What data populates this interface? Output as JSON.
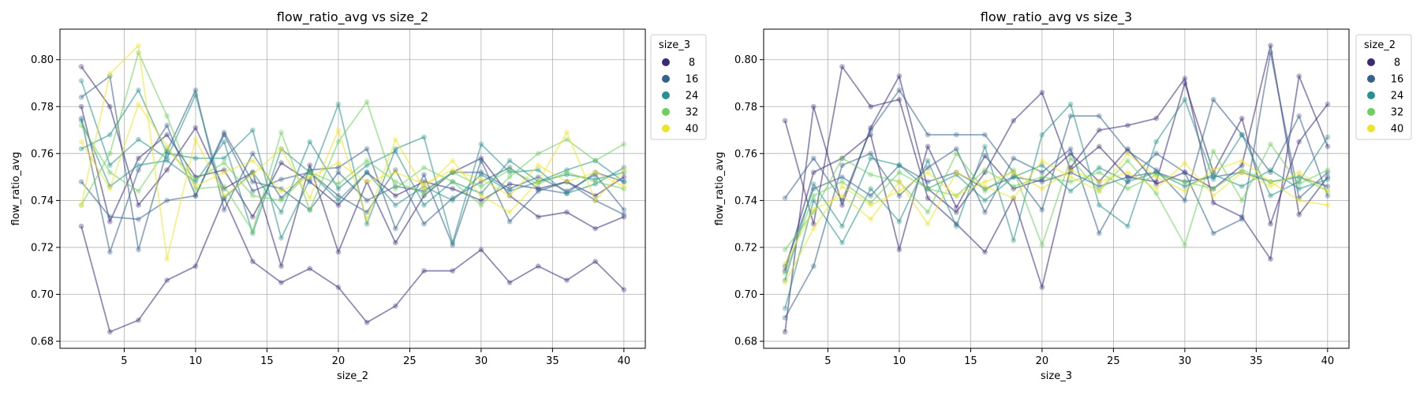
{
  "chart_data": [
    {
      "type": "line",
      "title": "flow_ratio_avg vs size_2",
      "xlabel": "size_2",
      "ylabel": "flow_ratio_avg",
      "xlim": [
        0.5,
        41.5
      ],
      "ylim": [
        0.677,
        0.813
      ],
      "xticks": [
        5,
        10,
        15,
        20,
        25,
        30,
        35,
        40
      ],
      "yticks": [
        0.68,
        0.7,
        0.72,
        0.74,
        0.76,
        0.78,
        0.8
      ],
      "grid": true,
      "legend": {
        "title": "size_3",
        "placement": "outside-top-right",
        "entries": [
          "8",
          "16",
          "24",
          "32",
          "40"
        ]
      },
      "x": [
        2,
        4,
        6,
        8,
        10,
        12,
        14,
        16,
        18,
        20,
        22,
        24,
        26,
        28,
        30,
        32,
        34,
        36,
        38,
        40
      ],
      "series": [
        {
          "group": "8",
          "color": "#3b2a78",
          "values": [
            0.729,
            0.684,
            0.689,
            0.706,
            0.712,
            0.741,
            0.714,
            0.705,
            0.711,
            0.703,
            0.688,
            0.695,
            0.71,
            0.71,
            0.719,
            0.705,
            0.712,
            0.706,
            0.714,
            0.702
          ]
        },
        {
          "group": "8",
          "color": "#3b2a78",
          "values": [
            0.797,
            0.78,
            0.738,
            0.753,
            0.771,
            0.745,
            0.752,
            0.712,
            0.755,
            0.718,
            0.748,
            0.722,
            0.742,
            0.752,
            0.758,
            0.742,
            0.733,
            0.735,
            0.728,
            0.733
          ]
        },
        {
          "group": "8",
          "color": "#3b2a78",
          "values": [
            0.78,
            0.731,
            0.758,
            0.768,
            0.75,
            0.753,
            0.733,
            0.756,
            0.748,
            0.738,
            0.752,
            0.742,
            0.748,
            0.745,
            0.74,
            0.747,
            0.745,
            0.748,
            0.742,
            0.75
          ]
        },
        {
          "group": "16",
          "color": "#34618d",
          "values": [
            0.784,
            0.793,
            0.719,
            0.761,
            0.787,
            0.736,
            0.76,
            0.741,
            0.753,
            0.754,
            0.762,
            0.728,
            0.751,
            0.721,
            0.757,
            0.731,
            0.744,
            0.748,
            0.74,
            0.734
          ]
        },
        {
          "group": "16",
          "color": "#34618d",
          "values": [
            0.775,
            0.718,
            0.753,
            0.772,
            0.742,
            0.768,
            0.744,
            0.749,
            0.752,
            0.742,
            0.735,
            0.753,
            0.73,
            0.741,
            0.748,
            0.754,
            0.745,
            0.743,
            0.752,
            0.748
          ]
        },
        {
          "group": "16",
          "color": "#34618d",
          "values": [
            0.748,
            0.733,
            0.732,
            0.74,
            0.742,
            0.769,
            0.748,
            0.745,
            0.736,
            0.752,
            0.74,
            0.746,
            0.744,
            0.752,
            0.752,
            0.745,
            0.75,
            0.744,
            0.751,
            0.736
          ]
        },
        {
          "group": "24",
          "color": "#26928d",
          "values": [
            0.762,
            0.768,
            0.787,
            0.76,
            0.758,
            0.758,
            0.77,
            0.724,
            0.749,
            0.781,
            0.73,
            0.762,
            0.767,
            0.722,
            0.764,
            0.752,
            0.753,
            0.743,
            0.747,
            0.754
          ]
        },
        {
          "group": "24",
          "color": "#26928d",
          "values": [
            0.774,
            0.746,
            0.755,
            0.757,
            0.748,
            0.765,
            0.726,
            0.762,
            0.752,
            0.74,
            0.752,
            0.738,
            0.746,
            0.74,
            0.751,
            0.744,
            0.748,
            0.751,
            0.749,
            0.752
          ]
        },
        {
          "group": "24",
          "color": "#26928d",
          "values": [
            0.791,
            0.755,
            0.766,
            0.758,
            0.785,
            0.741,
            0.752,
            0.735,
            0.765,
            0.745,
            0.755,
            0.761,
            0.738,
            0.748,
            0.743,
            0.757,
            0.748,
            0.753,
            0.757,
            0.748
          ]
        },
        {
          "group": "32",
          "color": "#6ecf5c",
          "values": [
            0.738,
            0.76,
            0.803,
            0.776,
            0.745,
            0.746,
            0.727,
            0.769,
            0.736,
            0.765,
            0.782,
            0.745,
            0.754,
            0.748,
            0.738,
            0.75,
            0.76,
            0.766,
            0.757,
            0.764
          ]
        },
        {
          "group": "32",
          "color": "#6ecf5c",
          "values": [
            0.772,
            0.752,
            0.744,
            0.762,
            0.749,
            0.756,
            0.742,
            0.74,
            0.752,
            0.747,
            0.757,
            0.748,
            0.743,
            0.752,
            0.746,
            0.753,
            0.747,
            0.752,
            0.748,
            0.745
          ]
        },
        {
          "group": "40",
          "color": "#efe32a",
          "values": [
            0.738,
            0.794,
            0.806,
            0.715,
            0.766,
            0.742,
            0.751,
            0.762,
            0.741,
            0.77,
            0.732,
            0.766,
            0.745,
            0.757,
            0.742,
            0.735,
            0.748,
            0.769,
            0.74,
            0.753
          ]
        },
        {
          "group": "40",
          "color": "#efe32a",
          "values": [
            0.765,
            0.745,
            0.781,
            0.763,
            0.746,
            0.752,
            0.757,
            0.744,
            0.75,
            0.756,
            0.748,
            0.752,
            0.747,
            0.753,
            0.749,
            0.742,
            0.755,
            0.748,
            0.752,
            0.746
          ]
        }
      ]
    },
    {
      "type": "line",
      "title": "flow_ratio_avg vs size_3",
      "xlabel": "size_3",
      "ylabel": "flow_ratio_avg",
      "xlim": [
        0.5,
        41.5
      ],
      "ylim": [
        0.677,
        0.813
      ],
      "xticks": [
        5,
        10,
        15,
        20,
        25,
        30,
        35,
        40
      ],
      "yticks": [
        0.68,
        0.7,
        0.72,
        0.74,
        0.76,
        0.78,
        0.8
      ],
      "grid": true,
      "legend": {
        "title": "size_2",
        "placement": "outside-top-right",
        "entries": [
          "8",
          "16",
          "24",
          "32",
          "40"
        ]
      },
      "x": [
        2,
        4,
        6,
        8,
        10,
        12,
        14,
        16,
        18,
        20,
        22,
        24,
        26,
        28,
        30,
        32,
        34,
        36,
        38,
        40
      ],
      "series": [
        {
          "group": "8",
          "color": "#3b2a78",
          "values": [
            0.774,
            0.73,
            0.797,
            0.78,
            0.783,
            0.741,
            0.73,
            0.718,
            0.741,
            0.703,
            0.754,
            0.77,
            0.772,
            0.775,
            0.792,
            0.739,
            0.733,
            0.715,
            0.793,
            0.763
          ]
        },
        {
          "group": "8",
          "color": "#3b2a78",
          "values": [
            0.684,
            0.78,
            0.738,
            0.771,
            0.793,
            0.745,
            0.735,
            0.752,
            0.774,
            0.786,
            0.753,
            0.763,
            0.75,
            0.748,
            0.79,
            0.752,
            0.775,
            0.73,
            0.765,
            0.781
          ]
        },
        {
          "group": "8",
          "color": "#3b2a78",
          "values": [
            0.71,
            0.752,
            0.758,
            0.768,
            0.719,
            0.763,
            0.737,
            0.759,
            0.745,
            0.749,
            0.76,
            0.748,
            0.762,
            0.747,
            0.752,
            0.745,
            0.755,
            0.806,
            0.734,
            0.75
          ]
        },
        {
          "group": "16",
          "color": "#34618d",
          "values": [
            0.741,
            0.758,
            0.74,
            0.77,
            0.787,
            0.768,
            0.768,
            0.768,
            0.752,
            0.736,
            0.776,
            0.776,
            0.761,
            0.753,
            0.74,
            0.783,
            0.768,
            0.752,
            0.776,
            0.742
          ]
        },
        {
          "group": "16",
          "color": "#34618d",
          "values": [
            0.69,
            0.712,
            0.755,
            0.76,
            0.742,
            0.754,
            0.762,
            0.735,
            0.758,
            0.752,
            0.762,
            0.726,
            0.748,
            0.76,
            0.752,
            0.726,
            0.732,
            0.803,
            0.741,
            0.752
          ]
        },
        {
          "group": "16",
          "color": "#34618d",
          "values": [
            0.712,
            0.745,
            0.75,
            0.742,
            0.755,
            0.748,
            0.752,
            0.745,
            0.75,
            0.748,
            0.752,
            0.746,
            0.75,
            0.752,
            0.748,
            0.75,
            0.752,
            0.748,
            0.75,
            0.746
          ]
        },
        {
          "group": "24",
          "color": "#26928d",
          "values": [
            0.694,
            0.74,
            0.722,
            0.745,
            0.731,
            0.757,
            0.729,
            0.763,
            0.723,
            0.768,
            0.781,
            0.738,
            0.729,
            0.765,
            0.783,
            0.749,
            0.768,
            0.742,
            0.748,
            0.767
          ]
        },
        {
          "group": "24",
          "color": "#26928d",
          "values": [
            0.706,
            0.747,
            0.729,
            0.758,
            0.755,
            0.745,
            0.751,
            0.74,
            0.75,
            0.755,
            0.744,
            0.754,
            0.748,
            0.752,
            0.746,
            0.751,
            0.746,
            0.753,
            0.745,
            0.749
          ]
        },
        {
          "group": "32",
          "color": "#6ecf5c",
          "values": [
            0.719,
            0.735,
            0.758,
            0.751,
            0.748,
            0.735,
            0.76,
            0.744,
            0.753,
            0.721,
            0.758,
            0.744,
            0.757,
            0.743,
            0.721,
            0.761,
            0.74,
            0.764,
            0.747,
            0.753
          ]
        },
        {
          "group": "32",
          "color": "#6ecf5c",
          "values": [
            0.709,
            0.742,
            0.748,
            0.739,
            0.752,
            0.745,
            0.742,
            0.753,
            0.746,
            0.75,
            0.748,
            0.752,
            0.745,
            0.751,
            0.748,
            0.745,
            0.753,
            0.748,
            0.75,
            0.744
          ]
        },
        {
          "group": "40",
          "color": "#efe32a",
          "values": [
            0.713,
            0.736,
            0.742,
            0.732,
            0.748,
            0.73,
            0.752,
            0.746,
            0.741,
            0.757,
            0.75,
            0.744,
            0.76,
            0.75,
            0.744,
            0.753,
            0.757,
            0.748,
            0.74,
            0.738
          ]
        },
        {
          "group": "40",
          "color": "#efe32a",
          "values": [
            0.705,
            0.728,
            0.746,
            0.738,
            0.744,
            0.752,
            0.742,
            0.748,
            0.752,
            0.745,
            0.753,
            0.748,
            0.752,
            0.745,
            0.756,
            0.742,
            0.752,
            0.746,
            0.752,
            0.744
          ]
        }
      ]
    }
  ]
}
